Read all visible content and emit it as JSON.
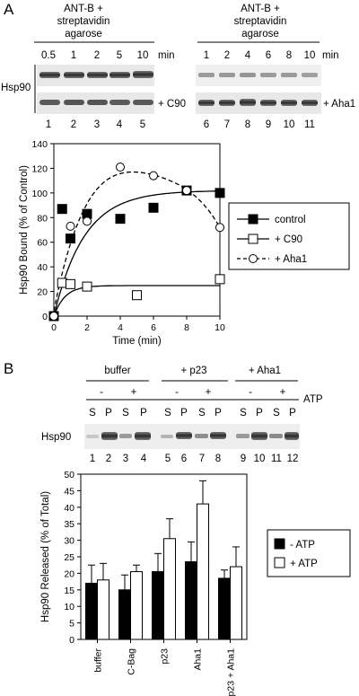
{
  "panel_a": {
    "letter": "A",
    "blot_left": {
      "header": [
        "ANT-B +",
        "streptavidin",
        "agarose"
      ],
      "time_labels": [
        "0.5",
        "1",
        "2",
        "5",
        "10"
      ],
      "unit": "min",
      "lane_numbers": [
        "1",
        "2",
        "3",
        "4",
        "5"
      ],
      "row_label": "Hsp90",
      "bottom_row_label": "+ C90"
    },
    "blot_right": {
      "header": [
        "ANT-B +",
        "streptavidin",
        "agarose"
      ],
      "time_labels": [
        "1",
        "2",
        "4",
        "6",
        "8",
        "10"
      ],
      "unit": "min",
      "lane_numbers": [
        "6",
        "7",
        "8",
        "9",
        "10",
        "11"
      ],
      "bottom_row_label": "+ Aha1"
    }
  },
  "panel_b": {
    "letter": "B",
    "groups": [
      "buffer",
      "+ p23",
      "+ Aha1"
    ],
    "atp_signs": [
      "-",
      "+",
      "-",
      "+",
      "-",
      "+"
    ],
    "atp_label": "ATP",
    "sp_labels": [
      "S",
      "P",
      "S",
      "P",
      "S",
      "P",
      "S",
      "P",
      "S",
      "P",
      "S",
      "P"
    ],
    "row_label": "Hsp90",
    "lane_numbers": [
      "1",
      "2",
      "3",
      "4",
      "5",
      "6",
      "7",
      "8",
      "9",
      "10",
      "11",
      "12"
    ]
  },
  "chart_data": [
    {
      "type": "scatter",
      "title": "",
      "xlabel": "Time (min)",
      "ylabel": "Hsp90 Bound (% of Control)",
      "xlim": [
        0,
        10
      ],
      "ylim": [
        0,
        140
      ],
      "xticks": [
        0,
        2,
        4,
        6,
        8,
        10
      ],
      "yticks": [
        0,
        20,
        40,
        60,
        80,
        100,
        120,
        140
      ],
      "legend_position": "right",
      "series": [
        {
          "name": "control",
          "marker": "filled-square",
          "line": "solid",
          "x": [
            0,
            0.5,
            1,
            2,
            4,
            6,
            8,
            10
          ],
          "y": [
            0,
            87,
            63,
            83,
            79,
            88,
            102,
            100
          ]
        },
        {
          "name": "+ C90",
          "marker": "open-square",
          "line": "solid",
          "x": [
            0,
            0.5,
            1,
            2,
            5,
            10
          ],
          "y": [
            0,
            27,
            26,
            24,
            17,
            30
          ]
        },
        {
          "name": "+ Aha1",
          "marker": "open-circle",
          "line": "dashed",
          "x": [
            0,
            1,
            2,
            4,
            6,
            8,
            10
          ],
          "y": [
            0,
            73,
            77,
            121,
            114,
            102,
            72
          ]
        }
      ]
    },
    {
      "type": "bar",
      "title": "",
      "xlabel": "",
      "ylabel": "Hsp90 Released (% of Total)",
      "ylim": [
        0,
        50
      ],
      "yticks": [
        0,
        5,
        10,
        15,
        20,
        25,
        30,
        35,
        40,
        45,
        50
      ],
      "categories": [
        "buffer",
        "C-Bag",
        "p23",
        "Aha1",
        "p23 + Aha1"
      ],
      "legend_position": "right",
      "series": [
        {
          "name": "- ATP",
          "color": "#000000",
          "values": [
            17,
            15,
            20.5,
            23.5,
            18.5
          ],
          "errors": [
            5.5,
            4.5,
            5.5,
            6,
            2.5
          ]
        },
        {
          "name": "+ ATP",
          "color": "#ffffff",
          "values": [
            18,
            20.5,
            30.5,
            41,
            22
          ],
          "errors": [
            5,
            2,
            6,
            7,
            6
          ]
        }
      ]
    }
  ]
}
